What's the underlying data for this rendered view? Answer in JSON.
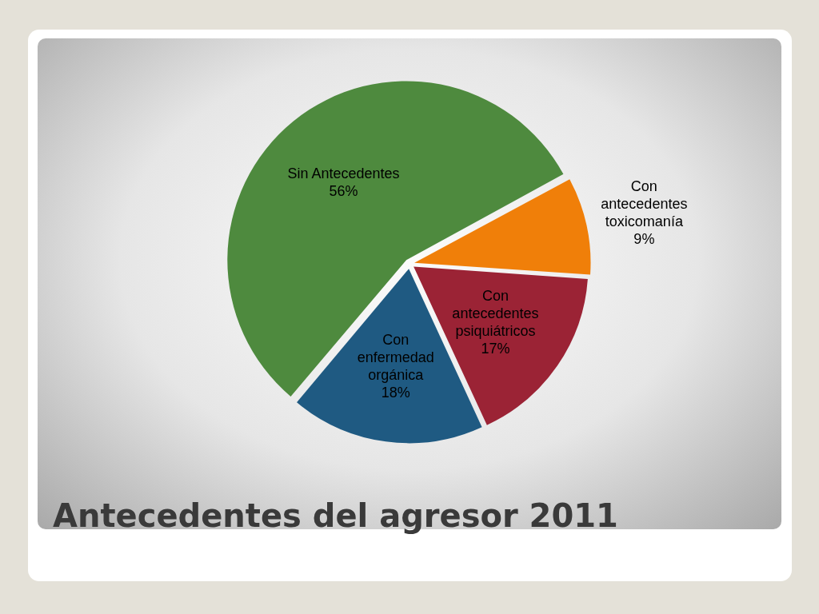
{
  "chart_data": {
    "type": "pie",
    "title": "Antecedentes del agresor 2011",
    "categories": [
      "Sin Antecedentes",
      "Con antecedentes toxicomanía",
      "Con antecedentes psiquiátricos",
      "Con enfermedad orgánica"
    ],
    "values": [
      56,
      9,
      17,
      18
    ],
    "colors": [
      "#4e8a3e",
      "#f07f09",
      "#9b2335",
      "#1f5a82"
    ],
    "value_labels": [
      "56%",
      "9%",
      "17%",
      "18%"
    ],
    "legend": false
  }
}
